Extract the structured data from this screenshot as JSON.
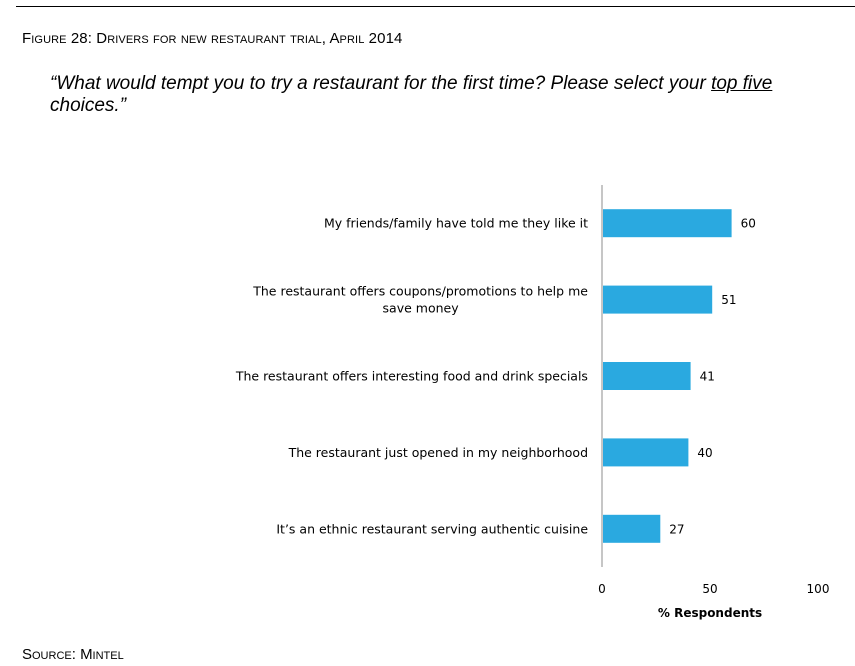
{
  "figure_title": "Figure 28: Drivers for new restaurant trial, April 2014",
  "question": {
    "before": "“What would tempt you to try a restaurant for the first time? Please select your ",
    "emphasis": "top five",
    "after": " choices.”"
  },
  "source": "Source: Mintel",
  "colors": {
    "bar": "#2AA9E0",
    "axis": "#8c8c8c"
  },
  "chart_data": {
    "type": "bar",
    "orientation": "horizontal",
    "categories": [
      "My friends/family have told me they like it",
      "The restaurant offers coupons/promotions to help me save money",
      "The restaurant offers interesting food and drink specials",
      "The restaurant just opened in my neighborhood",
      "It’s an ethnic restaurant serving authentic cuisine"
    ],
    "category_lines": [
      [
        "My friends/family have told me they like it"
      ],
      [
        "The restaurant offers coupons/promotions to help me",
        "save money"
      ],
      [
        "The restaurant offers interesting food and drink specials"
      ],
      [
        "The restaurant just opened in my neighborhood"
      ],
      [
        "It’s an ethnic restaurant serving authentic cuisine"
      ]
    ],
    "values": [
      60,
      51,
      41,
      40,
      27
    ],
    "xlabel": "% Respondents",
    "ylabel": "",
    "xlim": [
      0,
      100
    ],
    "xticks": [
      0,
      50,
      100
    ],
    "grid": false,
    "legend": "none"
  }
}
